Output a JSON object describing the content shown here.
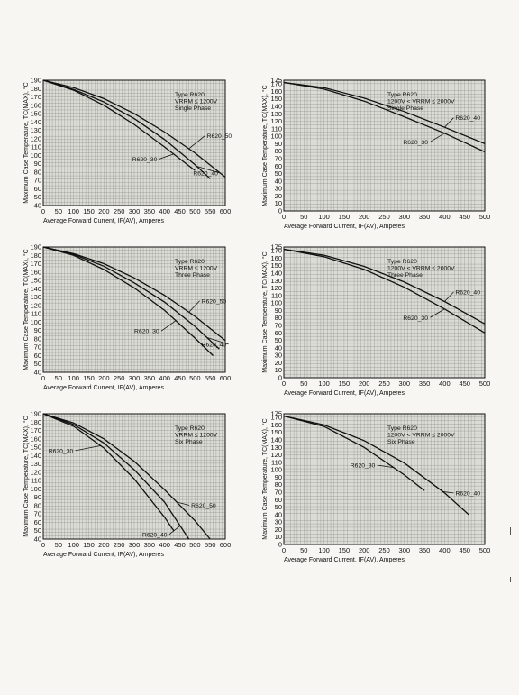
{
  "chart_data": [
    {
      "type": "line",
      "title_lines": [
        "Type R620",
        "VRRM ≤ 1200V",
        "Single Phase"
      ],
      "xlabel": "Average Forward Current, IF(AV), Amperes",
      "ylabel": "Maximum Case Temperature, TC(MAX), °C",
      "xlim": [
        0,
        600
      ],
      "ylim": [
        40,
        190
      ],
      "xticks": [
        0,
        50,
        100,
        150,
        200,
        250,
        300,
        350,
        400,
        450,
        500,
        550,
        600
      ],
      "yticks": [
        40,
        50,
        60,
        70,
        80,
        90,
        100,
        110,
        120,
        130,
        140,
        150,
        160,
        170,
        180,
        190
      ],
      "series": [
        {
          "name": "R620_50",
          "x": [
            0,
            100,
            200,
            300,
            400,
            500,
            600
          ],
          "y": [
            190,
            181,
            168,
            150,
            128,
            103,
            74
          ]
        },
        {
          "name": "R620_40",
          "x": [
            0,
            100,
            200,
            300,
            400,
            500,
            550
          ],
          "y": [
            190,
            179,
            164,
            144,
            119,
            89,
            72
          ]
        },
        {
          "name": "R620_30",
          "x": [
            0,
            100,
            200,
            300,
            400,
            450,
            500
          ],
          "y": [
            190,
            178,
            160,
            137,
            110,
            96,
            82
          ]
        }
      ],
      "labels": [
        {
          "text": "R620_50",
          "series": "R620_50"
        },
        {
          "text": "R620_30",
          "series": "R620_30"
        },
        {
          "text": "R620_40",
          "series": "R620_40"
        }
      ]
    },
    {
      "type": "line",
      "title_lines": [
        "Type R620",
        "1200V < VRRM ≤ 2000V",
        "Single Phase"
      ],
      "xlabel": "Average Forward Current, IF(AV), Amperes",
      "ylabel": "Maximum Case Temperature, TC(MAX), °C",
      "xlim": [
        0,
        500
      ],
      "ylim": [
        0,
        175
      ],
      "xticks": [
        0,
        50,
        100,
        150,
        200,
        250,
        300,
        350,
        400,
        450,
        500
      ],
      "yticks": [
        0,
        10,
        20,
        30,
        40,
        50,
        60,
        70,
        80,
        90,
        100,
        110,
        120,
        130,
        140,
        150,
        160,
        170,
        175
      ],
      "series": [
        {
          "name": "R620_40",
          "x": [
            0,
            100,
            200,
            300,
            400,
            500
          ],
          "y": [
            172,
            165,
            151,
            133,
            112,
            90
          ]
        },
        {
          "name": "R620_30",
          "x": [
            0,
            100,
            200,
            300,
            400,
            500
          ],
          "y": [
            172,
            163,
            147,
            126,
            104,
            79
          ]
        }
      ],
      "labels": [
        {
          "text": "R620_40",
          "series": "R620_40"
        },
        {
          "text": "R620_30",
          "series": "R620_30"
        }
      ]
    },
    {
      "type": "line",
      "title_lines": [
        "Type R620",
        "VRRM ≤ 1200V",
        "Three Phase"
      ],
      "xlabel": "Average Forward Current, IF(AV), Amperes",
      "ylabel": "Maximum Case Temperature, TC(MAX), °C",
      "xlim": [
        0,
        600
      ],
      "ylim": [
        40,
        190
      ],
      "xticks": [
        0,
        50,
        100,
        150,
        200,
        250,
        300,
        350,
        400,
        450,
        500,
        550,
        600
      ],
      "yticks": [
        40,
        50,
        60,
        70,
        80,
        90,
        100,
        110,
        120,
        130,
        140,
        150,
        160,
        170,
        180,
        190
      ],
      "series": [
        {
          "name": "R620_50",
          "x": [
            0,
            100,
            200,
            300,
            400,
            500,
            600
          ],
          "y": [
            190,
            182,
            170,
            153,
            132,
            107,
            78
          ]
        },
        {
          "name": "R620_40",
          "x": [
            0,
            100,
            200,
            300,
            400,
            500,
            580
          ],
          "y": [
            190,
            181,
            167,
            147,
            124,
            95,
            68
          ]
        },
        {
          "name": "R620_30",
          "x": [
            0,
            100,
            200,
            300,
            400,
            500,
            560
          ],
          "y": [
            190,
            180,
            163,
            141,
            114,
            81,
            60
          ]
        }
      ],
      "labels": [
        {
          "text": "R620_50",
          "series": "R620_50"
        },
        {
          "text": "R620_30",
          "series": "R620_30"
        },
        {
          "text": "R620_40",
          "series": "R620_40"
        }
      ]
    },
    {
      "type": "line",
      "title_lines": [
        "Type R620",
        "1200V < VRRM ≤ 2000V",
        "Three Phase"
      ],
      "xlabel": "Average Forward Current, IF(AV), Amperes",
      "ylabel": "Maximum Case Temperature, TC(MAX), °C",
      "xlim": [
        0,
        500
      ],
      "ylim": [
        0,
        175
      ],
      "xticks": [
        0,
        50,
        100,
        150,
        200,
        250,
        300,
        350,
        400,
        450,
        500
      ],
      "yticks": [
        0,
        10,
        20,
        30,
        40,
        50,
        60,
        70,
        80,
        90,
        100,
        110,
        120,
        130,
        140,
        150,
        160,
        170,
        175
      ],
      "series": [
        {
          "name": "R620_40",
          "x": [
            0,
            100,
            200,
            300,
            400,
            500
          ],
          "y": [
            172,
            164,
            149,
            128,
            102,
            72
          ]
        },
        {
          "name": "R620_30",
          "x": [
            0,
            100,
            200,
            300,
            400,
            500
          ],
          "y": [
            172,
            162,
            145,
            121,
            92,
            60
          ]
        }
      ],
      "labels": [
        {
          "text": "R620_40",
          "series": "R620_40"
        },
        {
          "text": "R620_30",
          "series": "R620_30"
        }
      ]
    },
    {
      "type": "line",
      "title_lines": [
        "Type R620",
        "VRRM ≤ 1200V",
        "Six Phase"
      ],
      "xlabel": "Average Forward Current, IF(AV), Amperes",
      "ylabel": "Maximum Case Temperature, TC(MAX), °C",
      "xlim": [
        0,
        600
      ],
      "ylim": [
        40,
        190
      ],
      "xticks": [
        0,
        50,
        100,
        150,
        200,
        250,
        300,
        350,
        400,
        450,
        500,
        550,
        600
      ],
      "yticks": [
        40,
        50,
        60,
        70,
        80,
        90,
        100,
        110,
        120,
        130,
        140,
        150,
        160,
        170,
        180,
        190
      ],
      "series": [
        {
          "name": "R620_50",
          "x": [
            0,
            100,
            200,
            300,
            400,
            500,
            550
          ],
          "y": [
            190,
            179,
            160,
            133,
            99,
            62,
            40
          ]
        },
        {
          "name": "R620_40",
          "x": [
            0,
            100,
            200,
            300,
            400,
            480
          ],
          "y": [
            190,
            177,
            155,
            123,
            84,
            40
          ]
        },
        {
          "name": "R620_30",
          "x": [
            0,
            100,
            200,
            300,
            400,
            430
          ],
          "y": [
            190,
            175,
            149,
            112,
            66,
            50
          ]
        }
      ],
      "labels": [
        {
          "text": "R620_30",
          "series": "R620_30"
        },
        {
          "text": "R620_50",
          "series": "R620_50"
        },
        {
          "text": "R620_40",
          "series": "R620_40"
        }
      ]
    },
    {
      "type": "line",
      "title_lines": [
        "Type R620",
        "1200V < VRRM ≤ 2000V",
        "Six Phase"
      ],
      "xlabel": "Average Forward Current, IF(AV), Amperes",
      "ylabel": "Maximum Case Temperature, TC(MAX), °C",
      "xlim": [
        0,
        500
      ],
      "ylim": [
        0,
        175
      ],
      "xticks": [
        0,
        50,
        100,
        150,
        200,
        250,
        300,
        350,
        400,
        450,
        500
      ],
      "yticks": [
        0,
        10,
        20,
        30,
        40,
        50,
        60,
        70,
        80,
        90,
        100,
        110,
        120,
        130,
        140,
        150,
        160,
        170,
        175
      ],
      "series": [
        {
          "name": "R620_40",
          "x": [
            0,
            100,
            200,
            300,
            400,
            460
          ],
          "y": [
            172,
            160,
            139,
            109,
            69,
            40
          ]
        },
        {
          "name": "R620_30",
          "x": [
            0,
            100,
            200,
            300,
            350
          ],
          "y": [
            172,
            158,
            130,
            93,
            72
          ]
        }
      ],
      "labels": [
        {
          "text": "R620_30",
          "series": "R620_30"
        },
        {
          "text": "R620_40",
          "series": "R620_40"
        }
      ]
    }
  ]
}
